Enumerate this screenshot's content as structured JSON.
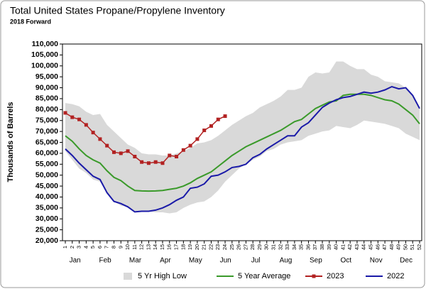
{
  "chart_data": {
    "type": "line",
    "title": "Total United States Propane/Propylene Inventory",
    "subtitle": "2018 Forward",
    "y_label": "Thousands of Barrels",
    "categories": [
      "1",
      "2",
      "3",
      "4",
      "5",
      "6",
      "7",
      "8",
      "9",
      "10",
      "11",
      "12",
      "13",
      "14",
      "15",
      "16",
      "17",
      "18",
      "19",
      "20",
      "21",
      "22",
      "23",
      "24",
      "25",
      "26",
      "27",
      "28",
      "29",
      "30",
      "31",
      "32",
      "33",
      "34",
      "35",
      "36",
      "37",
      "38",
      "39",
      "40",
      "41",
      "42",
      "43",
      "44",
      "45",
      "46",
      "47",
      "48",
      "49",
      "50",
      "51",
      "52"
    ],
    "months": [
      "Jan",
      "Feb",
      "Mar",
      "Apr",
      "May",
      "Jun",
      "Jul",
      "Aug",
      "Sep",
      "Oct",
      "Nov",
      "Dec"
    ],
    "ylim": [
      20000,
      110000
    ],
    "yticks": [
      {
        "value": 20000,
        "label": "20,000"
      },
      {
        "value": 25000,
        "label": "25,000"
      },
      {
        "value": 30000,
        "label": "30,000"
      },
      {
        "value": 35000,
        "label": "35,000"
      },
      {
        "value": 40000,
        "label": "40,000"
      },
      {
        "value": 45000,
        "label": "45,000"
      },
      {
        "value": 50000,
        "label": "50,000"
      },
      {
        "value": 55000,
        "label": "55,000"
      },
      {
        "value": 60000,
        "label": "60,000"
      },
      {
        "value": 65000,
        "label": "65,000"
      },
      {
        "value": 70000,
        "label": "70,000"
      },
      {
        "value": 75000,
        "label": "75,000"
      },
      {
        "value": 80000,
        "label": "80,000"
      },
      {
        "value": 85000,
        "label": "85,000"
      },
      {
        "value": 90000,
        "label": "90,000"
      },
      {
        "value": 95000,
        "label": "95,000"
      },
      {
        "value": 100000,
        "label": "100,000"
      },
      {
        "value": 105000,
        "label": "105,000"
      },
      {
        "value": 110000,
        "label": "110,000"
      }
    ],
    "band": {
      "name": "5 Yr High Low",
      "color": "#d9d9d9",
      "high": [
        83000,
        82500,
        81500,
        79000,
        77500,
        78000,
        73000,
        70000,
        67000,
        64000,
        62500,
        60000,
        59500,
        59500,
        59000,
        59000,
        60000,
        61000,
        62500,
        64500,
        65000,
        66000,
        68000,
        70500,
        73000,
        75000,
        77000,
        78500,
        81000,
        82500,
        84000,
        86000,
        89000,
        89000,
        90000,
        95000,
        97000,
        96500,
        97000,
        102000,
        102000,
        100000,
        98500,
        98500,
        96000,
        95000,
        93000,
        92500,
        92000,
        90000,
        86000,
        81000
      ],
      "low": [
        61000,
        57000,
        53000,
        51000,
        48000,
        47000,
        42000,
        38000,
        36000,
        35500,
        33500,
        33500,
        33500,
        33000,
        33000,
        32500,
        33000,
        35000,
        36500,
        37500,
        38000,
        40000,
        43000,
        47000,
        50000,
        53000,
        55000,
        57000,
        58500,
        61000,
        62000,
        64000,
        65000,
        65500,
        66000,
        68000,
        69000,
        70000,
        70500,
        72500,
        72000,
        71500,
        73000,
        75000,
        74500,
        74000,
        73500,
        72500,
        71500,
        69000,
        67500,
        66000
      ]
    },
    "series": [
      {
        "name": "5 Year Average",
        "color": "#3a9a2a",
        "values": [
          68000,
          65500,
          62000,
          59000,
          57000,
          55500,
          52000,
          49000,
          47500,
          45000,
          43000,
          42800,
          42700,
          42800,
          43000,
          43500,
          44000,
          45000,
          46500,
          48500,
          50000,
          51500,
          54000,
          56500,
          59000,
          61000,
          63000,
          64500,
          66000,
          67500,
          69000,
          70500,
          72500,
          74500,
          75500,
          78000,
          80500,
          82000,
          83500,
          84000,
          86500,
          87000,
          87000,
          87000,
          86500,
          85500,
          84500,
          84000,
          82500,
          80000,
          77500,
          73500
        ]
      },
      {
        "name": "2023",
        "color": "#b22222",
        "marker": "square",
        "values": [
          78500,
          76500,
          75500,
          73000,
          69500,
          66500,
          63500,
          60500,
          60000,
          61000,
          58500,
          56000,
          55500,
          56000,
          55500,
          59000,
          58500,
          61500,
          63500,
          66500,
          70500,
          72500,
          75500,
          77000,
          null,
          null,
          null,
          null,
          null,
          null,
          null,
          null,
          null,
          null,
          null,
          null,
          null,
          null,
          null,
          null,
          null,
          null,
          null,
          null,
          null,
          null,
          null,
          null,
          null,
          null,
          null,
          null
        ]
      },
      {
        "name": "2022",
        "color": "#1a1aa8",
        "values": [
          62000,
          59000,
          55500,
          52500,
          49500,
          48000,
          42000,
          38000,
          37000,
          35500,
          33200,
          33500,
          33500,
          34000,
          35000,
          36500,
          38500,
          40000,
          44000,
          44500,
          46000,
          49500,
          50000,
          51500,
          53500,
          54000,
          55000,
          58000,
          59500,
          62000,
          64000,
          66000,
          68000,
          68000,
          72000,
          74000,
          77500,
          81000,
          83000,
          84500,
          85500,
          86000,
          87000,
          88000,
          87500,
          88000,
          89000,
          90500,
          89500,
          90000,
          86500,
          80500
        ]
      }
    ]
  }
}
